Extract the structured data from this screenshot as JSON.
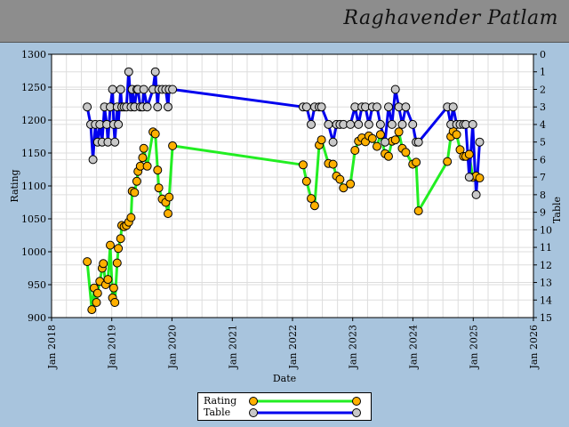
{
  "header": {
    "player_name": "Raghavender Patlam"
  },
  "colors": {
    "rating_line": "#22ee22",
    "rating_marker": "#ffb000",
    "table_line": "#0000ee",
    "table_marker": "#c8c8c8",
    "background": "#a8c4dd",
    "plot_background": "#ffffff",
    "grid": "#dddddd"
  },
  "chart_data": {
    "type": "line",
    "xlabel": "Date",
    "ylabel_left": "Rating",
    "ylabel_right": "Table",
    "x_range": [
      "2018-01-01",
      "2026-01-01"
    ],
    "x_ticks": [
      "Jan 2018",
      "Jan 2019",
      "Jan 2020",
      "Jan 2021",
      "Jan 2022",
      "Jan 2023",
      "Jan 2024",
      "Jan 2025",
      "Jan 2026"
    ],
    "ylim_left": [
      900,
      1300
    ],
    "yticks_left": [
      "900",
      "950",
      "1000",
      "1050",
      "1100",
      "1150",
      "1200",
      "1250",
      "1300"
    ],
    "ylim_right": [
      15,
      0
    ],
    "yticks_right": [
      "0",
      "1",
      "2",
      "3",
      "4",
      "5",
      "6",
      "7",
      "8",
      "9",
      "10",
      "11",
      "12",
      "13",
      "14",
      "15"
    ],
    "grid": true,
    "legend_position": "bottom-center",
    "series": [
      {
        "name": "Rating",
        "axis": "left",
        "points": [
          [
            "2018-08-05",
            985
          ],
          [
            "2018-09-02",
            912
          ],
          [
            "2018-09-16",
            945
          ],
          [
            "2018-09-30",
            923
          ],
          [
            "2018-10-07",
            937
          ],
          [
            "2018-10-21",
            955
          ],
          [
            "2018-11-04",
            975
          ],
          [
            "2018-11-11",
            982
          ],
          [
            "2018-11-25",
            950
          ],
          [
            "2018-12-09",
            958
          ],
          [
            "2018-12-23",
            1010
          ],
          [
            "2019-01-06",
            930
          ],
          [
            "2019-01-13",
            945
          ],
          [
            "2019-01-20",
            923
          ],
          [
            "2019-02-03",
            983
          ],
          [
            "2019-02-10",
            1005
          ],
          [
            "2019-02-24",
            1020
          ],
          [
            "2019-03-03",
            1040
          ],
          [
            "2019-03-17",
            1038
          ],
          [
            "2019-03-31",
            1040
          ],
          [
            "2019-04-14",
            1045
          ],
          [
            "2019-04-28",
            1052
          ],
          [
            "2019-05-05",
            1092
          ],
          [
            "2019-05-19",
            1090
          ],
          [
            "2019-06-02",
            1107
          ],
          [
            "2019-06-09",
            1122
          ],
          [
            "2019-06-23",
            1130
          ],
          [
            "2019-07-07",
            1143
          ],
          [
            "2019-07-14",
            1157
          ],
          [
            "2019-08-04",
            1130
          ],
          [
            "2019-09-08",
            1182
          ],
          [
            "2019-09-22",
            1179
          ],
          [
            "2019-10-06",
            1124
          ],
          [
            "2019-10-13",
            1097
          ],
          [
            "2019-11-03",
            1080
          ],
          [
            "2019-11-24",
            1075
          ],
          [
            "2019-12-08",
            1058
          ],
          [
            "2019-12-15",
            1083
          ],
          [
            "2020-01-05",
            1161
          ],
          [
            "2022-03-06",
            1132
          ],
          [
            "2022-03-27",
            1107
          ],
          [
            "2022-04-24",
            1081
          ],
          [
            "2022-05-15",
            1070
          ],
          [
            "2022-06-12",
            1162
          ],
          [
            "2022-06-26",
            1170
          ],
          [
            "2022-08-07",
            1134
          ],
          [
            "2022-09-04",
            1133
          ],
          [
            "2022-09-25",
            1115
          ],
          [
            "2022-10-16",
            1110
          ],
          [
            "2022-11-06",
            1097
          ],
          [
            "2022-12-18",
            1103
          ],
          [
            "2023-01-15",
            1154
          ],
          [
            "2023-02-05",
            1168
          ],
          [
            "2023-02-26",
            1173
          ],
          [
            "2023-03-19",
            1167
          ],
          [
            "2023-04-09",
            1176
          ],
          [
            "2023-04-30",
            1172
          ],
          [
            "2023-05-28",
            1160
          ],
          [
            "2023-06-18",
            1178
          ],
          [
            "2023-07-16",
            1149
          ],
          [
            "2023-08-06",
            1145
          ],
          [
            "2023-08-27",
            1168
          ],
          [
            "2023-09-17",
            1170
          ],
          [
            "2023-10-08",
            1182
          ],
          [
            "2023-10-29",
            1157
          ],
          [
            "2023-11-19",
            1151
          ],
          [
            "2023-12-31",
            1133
          ],
          [
            "2024-01-21",
            1136
          ],
          [
            "2024-02-04",
            1062
          ],
          [
            "2024-07-28",
            1137
          ],
          [
            "2024-08-18",
            1175
          ],
          [
            "2024-09-01",
            1183
          ],
          [
            "2024-09-22",
            1178
          ],
          [
            "2024-10-13",
            1155
          ],
          [
            "2024-11-03",
            1145
          ],
          [
            "2024-11-17",
            1145
          ],
          [
            "2024-12-08",
            1148
          ],
          [
            "2024-12-29",
            1113
          ],
          [
            "2025-01-19",
            1115
          ],
          [
            "2025-02-09",
            1112
          ]
        ]
      },
      {
        "name": "Table",
        "axis": "right",
        "points": [
          [
            "2018-08-05",
            3
          ],
          [
            "2018-08-26",
            4
          ],
          [
            "2018-09-09",
            6
          ],
          [
            "2018-09-23",
            4
          ],
          [
            "2018-10-07",
            5
          ],
          [
            "2018-10-21",
            4
          ],
          [
            "2018-11-04",
            5
          ],
          [
            "2018-11-18",
            3
          ],
          [
            "2018-12-02",
            4
          ],
          [
            "2018-12-09",
            5
          ],
          [
            "2018-12-23",
            3
          ],
          [
            "2019-01-06",
            2
          ],
          [
            "2019-01-13",
            4
          ],
          [
            "2019-01-20",
            5
          ],
          [
            "2019-02-03",
            3
          ],
          [
            "2019-02-10",
            4
          ],
          [
            "2019-02-24",
            2
          ],
          [
            "2019-03-03",
            3
          ],
          [
            "2019-03-17",
            3
          ],
          [
            "2019-03-31",
            3
          ],
          [
            "2019-04-14",
            1
          ],
          [
            "2019-04-28",
            3
          ],
          [
            "2019-05-05",
            2
          ],
          [
            "2019-05-19",
            3
          ],
          [
            "2019-06-02",
            2
          ],
          [
            "2019-06-09",
            2
          ],
          [
            "2019-06-23",
            3
          ],
          [
            "2019-07-07",
            3
          ],
          [
            "2019-07-14",
            2
          ],
          [
            "2019-08-04",
            3
          ],
          [
            "2019-09-08",
            2
          ],
          [
            "2019-09-22",
            1
          ],
          [
            "2019-10-06",
            3
          ],
          [
            "2019-10-13",
            2
          ],
          [
            "2019-11-03",
            2
          ],
          [
            "2019-11-24",
            2
          ],
          [
            "2019-12-08",
            3
          ],
          [
            "2019-12-15",
            2
          ],
          [
            "2020-01-05",
            2
          ],
          [
            "2022-03-06",
            3
          ],
          [
            "2022-03-27",
            3
          ],
          [
            "2022-04-24",
            4
          ],
          [
            "2022-05-15",
            3
          ],
          [
            "2022-06-12",
            3
          ],
          [
            "2022-06-26",
            3
          ],
          [
            "2022-08-07",
            4
          ],
          [
            "2022-09-04",
            5
          ],
          [
            "2022-09-25",
            4
          ],
          [
            "2022-10-16",
            4
          ],
          [
            "2022-11-06",
            4
          ],
          [
            "2022-12-18",
            4
          ],
          [
            "2023-01-15",
            3
          ],
          [
            "2023-02-05",
            4
          ],
          [
            "2023-02-26",
            3
          ],
          [
            "2023-03-19",
            3
          ],
          [
            "2023-04-09",
            4
          ],
          [
            "2023-04-30",
            3
          ],
          [
            "2023-05-28",
            3
          ],
          [
            "2023-06-18",
            4
          ],
          [
            "2023-07-16",
            5
          ],
          [
            "2023-08-06",
            3
          ],
          [
            "2023-08-27",
            4
          ],
          [
            "2023-09-17",
            2
          ],
          [
            "2023-10-08",
            3
          ],
          [
            "2023-10-29",
            4
          ],
          [
            "2023-11-19",
            3
          ],
          [
            "2023-12-31",
            4
          ],
          [
            "2024-01-21",
            5
          ],
          [
            "2024-02-04",
            5
          ],
          [
            "2024-07-28",
            3
          ],
          [
            "2024-08-18",
            4
          ],
          [
            "2024-09-01",
            3
          ],
          [
            "2024-09-22",
            4
          ],
          [
            "2024-10-13",
            4
          ],
          [
            "2024-11-03",
            4
          ],
          [
            "2024-11-17",
            4
          ],
          [
            "2024-12-08",
            7
          ],
          [
            "2024-12-29",
            4
          ],
          [
            "2025-01-19",
            8
          ],
          [
            "2025-02-09",
            5
          ]
        ]
      }
    ]
  }
}
